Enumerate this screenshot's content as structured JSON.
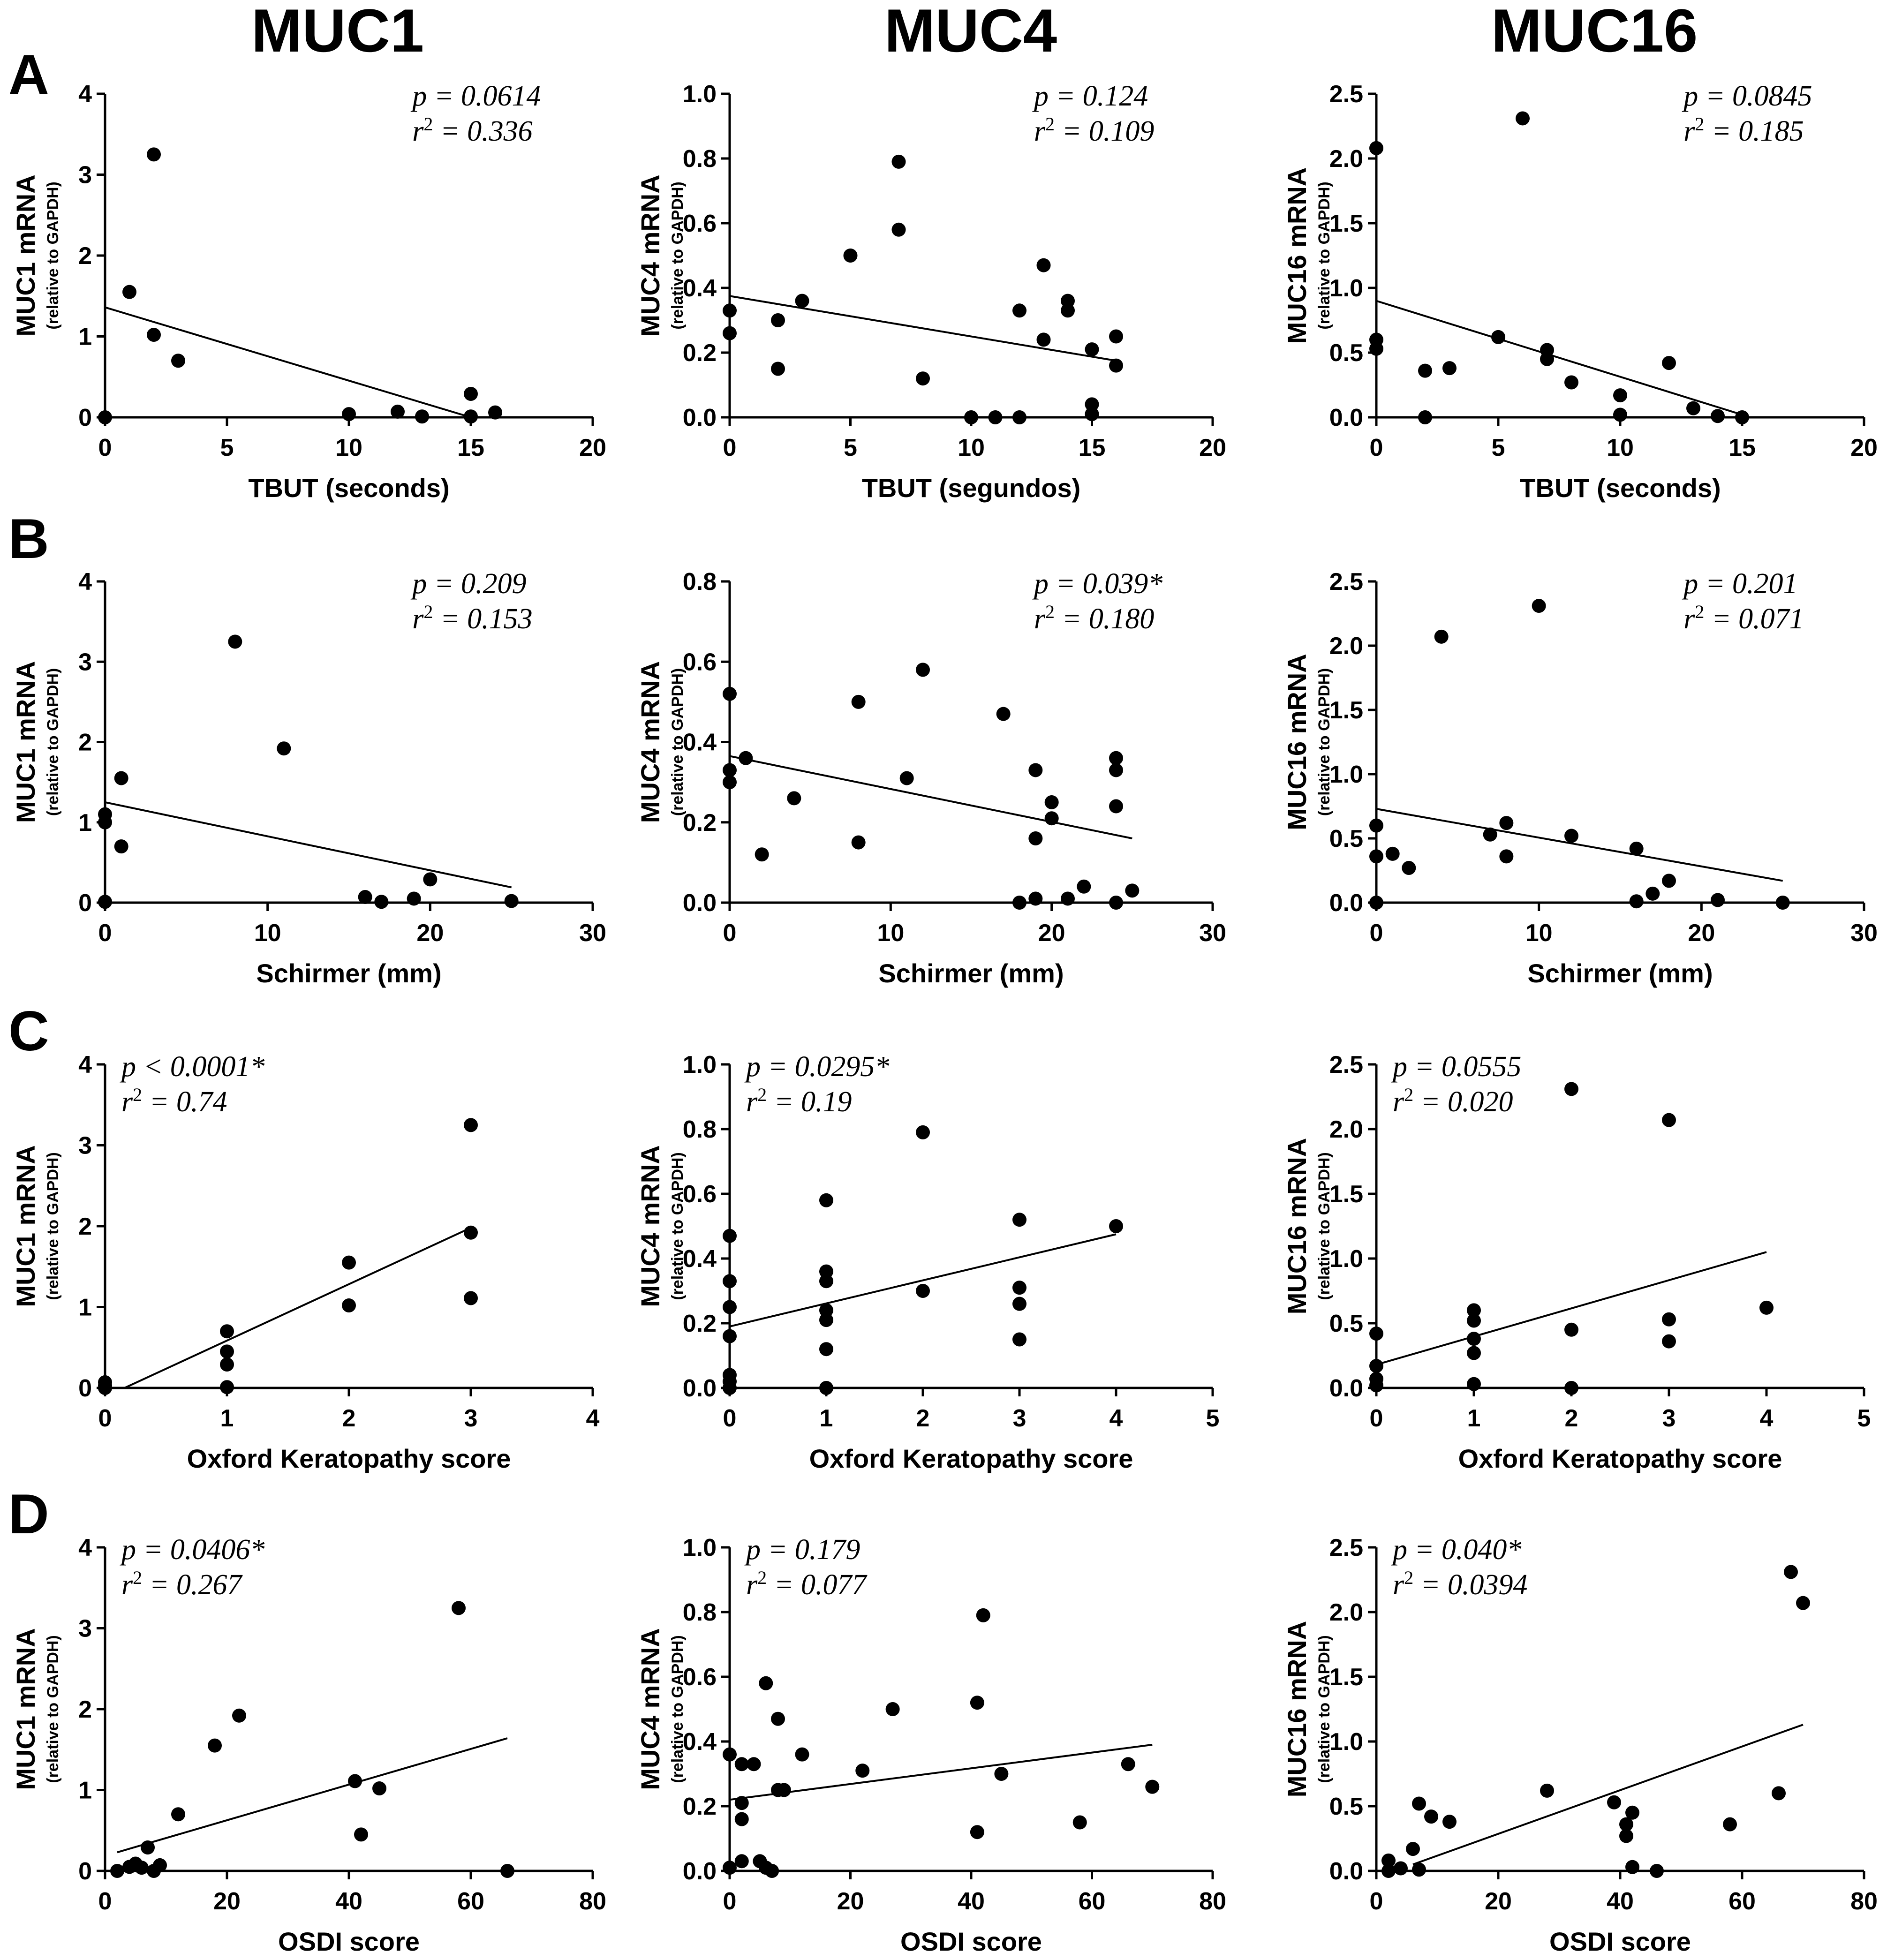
{
  "column_titles": [
    "MUC1",
    "MUC4",
    "MUC16"
  ],
  "row_letters": [
    "A",
    "B",
    "C",
    "D"
  ],
  "chart_data": [
    {
      "type": "scatter",
      "row": 0,
      "col": 0,
      "xlabel": "TBUT  (seconds)",
      "ylabel": "MUC1 mRNA",
      "ylabel_sub": "(relative to  GAPDH)",
      "xlim": [
        0,
        20
      ],
      "ylim": [
        0,
        4
      ],
      "xticks": [
        "0",
        "5",
        "10",
        "15",
        "20"
      ],
      "yticks": [
        "0",
        "1",
        "2",
        "3",
        "4"
      ],
      "stat_p": "p = 0.0614",
      "stat_r2": "r",
      "stat_r2_val": " = 0.336",
      "stat_pos": "top-right",
      "points": [
        [
          0,
          0
        ],
        [
          1,
          1.55
        ],
        [
          2,
          3.25
        ],
        [
          2,
          1.02
        ],
        [
          3,
          0.7
        ],
        [
          10,
          0.04
        ],
        [
          12,
          0.07
        ],
        [
          13,
          0.01
        ],
        [
          15,
          0.29
        ],
        [
          15,
          0.01
        ],
        [
          16,
          0.06
        ]
      ],
      "fit": [
        [
          0,
          1.36
        ],
        [
          15,
          0
        ]
      ]
    },
    {
      "type": "scatter",
      "row": 0,
      "col": 1,
      "xlabel": "TBUT (segundos)",
      "ylabel": "MUC4 mRNA",
      "ylabel_sub": "(relative to  GAPDH)",
      "xlim": [
        0,
        20
      ],
      "ylim": [
        0,
        1.0
      ],
      "xticks": [
        "0",
        "5",
        "10",
        "15",
        "20"
      ],
      "yticks": [
        "0.0",
        "0.2",
        "0.4",
        "0.6",
        "0.8",
        "1.0"
      ],
      "stat_p": "p = 0.124",
      "stat_r2": "r",
      "stat_r2_val": " = 0.109",
      "stat_pos": "top-right",
      "points": [
        [
          0,
          0.33
        ],
        [
          0,
          0.26
        ],
        [
          2,
          0.3
        ],
        [
          2,
          0.15
        ],
        [
          3,
          0.36
        ],
        [
          5,
          0.5
        ],
        [
          7,
          0.79
        ],
        [
          7,
          0.58
        ],
        [
          8,
          0.12
        ],
        [
          10,
          0.0
        ],
        [
          11,
          0.0
        ],
        [
          12,
          0.33
        ],
        [
          12,
          0.0
        ],
        [
          13,
          0.47
        ],
        [
          13,
          0.24
        ],
        [
          14,
          0.36
        ],
        [
          14,
          0.33
        ],
        [
          15,
          0.21
        ],
        [
          15,
          0.04
        ],
        [
          15,
          0.01
        ],
        [
          16,
          0.25
        ],
        [
          16,
          0.16
        ]
      ],
      "fit": [
        [
          0,
          0.375
        ],
        [
          16,
          0.175
        ]
      ]
    },
    {
      "type": "scatter",
      "row": 0,
      "col": 2,
      "xlabel": "TBUT  (seconds)",
      "ylabel": "MUC16 mRNA",
      "ylabel_sub": "(relative to  GAPDH)",
      "xlim": [
        0,
        20
      ],
      "ylim": [
        0,
        2.5
      ],
      "xticks": [
        "0",
        "5",
        "10",
        "15",
        "20"
      ],
      "yticks": [
        "0.0",
        "0.5",
        "1.0",
        "1.5",
        "2.0",
        "2.5"
      ],
      "stat_p": "p = 0.0845",
      "stat_r2": "r",
      "stat_r2_val": " = 0.185",
      "stat_pos": "top-right",
      "points": [
        [
          0,
          2.08
        ],
        [
          0,
          0.6
        ],
        [
          0,
          0.53
        ],
        [
          2,
          0.36
        ],
        [
          2,
          0.0
        ],
        [
          3,
          0.38
        ],
        [
          5,
          0.62
        ],
        [
          6,
          2.31
        ],
        [
          7,
          0.52
        ],
        [
          7,
          0.45
        ],
        [
          8,
          0.27
        ],
        [
          10,
          0.17
        ],
        [
          10,
          0.02
        ],
        [
          12,
          0.42
        ],
        [
          13,
          0.07
        ],
        [
          14,
          0.01
        ],
        [
          15,
          0.0
        ]
      ],
      "fit": [
        [
          0,
          0.9
        ],
        [
          15,
          0.02
        ]
      ]
    },
    {
      "type": "scatter",
      "row": 1,
      "col": 0,
      "xlabel": "Schirmer (mm)",
      "ylabel": "MUC1 mRNA",
      "ylabel_sub": "(relative to  GAPDH)",
      "xlim": [
        0,
        30
      ],
      "ylim": [
        0,
        4
      ],
      "xticks": [
        "0",
        "10",
        "20",
        "30"
      ],
      "yticks": [
        "0",
        "1",
        "2",
        "3",
        "4"
      ],
      "stat_p": "p = 0.209",
      "stat_r2": "r",
      "stat_r2_val": " = 0.153",
      "stat_pos": "top-right",
      "points": [
        [
          0,
          1.1
        ],
        [
          0,
          1.0
        ],
        [
          0,
          0.01
        ],
        [
          1,
          1.55
        ],
        [
          1,
          0.7
        ],
        [
          8,
          3.25
        ],
        [
          11,
          1.92
        ],
        [
          16,
          0.07
        ],
        [
          17,
          0.01
        ],
        [
          19,
          0.05
        ],
        [
          20,
          0.29
        ],
        [
          25,
          0.02
        ]
      ],
      "fit": [
        [
          0,
          1.25
        ],
        [
          25,
          0.19
        ]
      ]
    },
    {
      "type": "scatter",
      "row": 1,
      "col": 1,
      "xlabel": "Schirmer (mm)",
      "ylabel": "MUC4 mRNA",
      "ylabel_sub": "(relative to  GAPDH)",
      "xlim": [
        0,
        30
      ],
      "ylim": [
        0,
        0.8
      ],
      "xticks": [
        "0",
        "10",
        "20",
        "30"
      ],
      "yticks": [
        "0.0",
        "0.2",
        "0.4",
        "0.6",
        "0.8"
      ],
      "stat_p": "p = 0.039*",
      "stat_r2": "r",
      "stat_r2_val": " = 0.180",
      "stat_pos": "top-right",
      "points": [
        [
          0,
          0.52
        ],
        [
          0,
          0.33
        ],
        [
          0,
          0.3
        ],
        [
          1,
          0.36
        ],
        [
          2,
          0.12
        ],
        [
          4,
          0.26
        ],
        [
          8,
          0.5
        ],
        [
          8,
          0.15
        ],
        [
          11,
          0.31
        ],
        [
          12,
          0.58
        ],
        [
          17,
          0.47
        ],
        [
          18,
          0.0
        ],
        [
          19,
          0.33
        ],
        [
          19,
          0.16
        ],
        [
          19,
          0.01
        ],
        [
          20,
          0.25
        ],
        [
          20,
          0.21
        ],
        [
          21,
          0.01
        ],
        [
          22,
          0.04
        ],
        [
          24,
          0.36
        ],
        [
          24,
          0.33
        ],
        [
          24,
          0.24
        ],
        [
          24,
          0.0
        ],
        [
          25,
          0.03
        ]
      ],
      "fit": [
        [
          0,
          0.365
        ],
        [
          25,
          0.16
        ]
      ]
    },
    {
      "type": "scatter",
      "row": 1,
      "col": 2,
      "xlabel": "Schirmer (mm)",
      "ylabel": "MUC16 mRNA",
      "ylabel_sub": "(relative to  GAPDH)",
      "xlim": [
        0,
        30
      ],
      "ylim": [
        0,
        2.5
      ],
      "xticks": [
        "0",
        "10",
        "20",
        "30"
      ],
      "yticks": [
        "0.0",
        "0.5",
        "1.0",
        "1.5",
        "2.0",
        "2.5"
      ],
      "stat_p": "p = 0.201",
      "stat_r2": "r",
      "stat_r2_val": " = 0.071",
      "stat_pos": "top-right",
      "points": [
        [
          0,
          0.6
        ],
        [
          0,
          0.36
        ],
        [
          0,
          0.0
        ],
        [
          1,
          0.38
        ],
        [
          2,
          0.27
        ],
        [
          4,
          2.07
        ],
        [
          7,
          0.53
        ],
        [
          8,
          0.62
        ],
        [
          8,
          0.36
        ],
        [
          10,
          2.31
        ],
        [
          12,
          0.52
        ],
        [
          16,
          0.42
        ],
        [
          16,
          0.01
        ],
        [
          17,
          0.07
        ],
        [
          18,
          0.17
        ],
        [
          21,
          0.02
        ],
        [
          25,
          0.0
        ]
      ],
      "fit": [
        [
          0,
          0.73
        ],
        [
          25,
          0.17
        ]
      ]
    },
    {
      "type": "scatter",
      "row": 2,
      "col": 0,
      "xlabel": "Oxford  Keratopathy score",
      "ylabel": "MUC1 mRNA",
      "ylabel_sub": "(relative to  GAPDH)",
      "xlim": [
        0,
        4
      ],
      "ylim": [
        0,
        4
      ],
      "xticks": [
        "0",
        "1",
        "2",
        "3",
        "4"
      ],
      "yticks": [
        "0",
        "1",
        "2",
        "3",
        "4"
      ],
      "stat_p": "p < 0.0001*",
      "stat_r2": "r",
      "stat_r2_val": " = 0.74",
      "stat_pos": "top-left",
      "points": [
        [
          0,
          0.07
        ],
        [
          0,
          0.03
        ],
        [
          0,
          0.0
        ],
        [
          1,
          0.7
        ],
        [
          1,
          0.45
        ],
        [
          1,
          0.29
        ],
        [
          1,
          0.01
        ],
        [
          2,
          1.55
        ],
        [
          2,
          1.02
        ],
        [
          3,
          3.25
        ],
        [
          3,
          1.92
        ],
        [
          3,
          1.11
        ]
      ],
      "fit": [
        [
          0.16,
          0
        ],
        [
          3,
          1.98
        ]
      ]
    },
    {
      "type": "scatter",
      "row": 2,
      "col": 1,
      "xlabel": "Oxford Keratopathy score",
      "ylabel": "MUC4 mRNA",
      "ylabel_sub": "(relative to  GAPDH)",
      "xlim": [
        0,
        5
      ],
      "ylim": [
        0,
        1.0
      ],
      "xticks": [
        "0",
        "1",
        "2",
        "3",
        "4",
        "5"
      ],
      "yticks": [
        "0.0",
        "0.2",
        "0.4",
        "0.6",
        "0.8",
        "1.0"
      ],
      "stat_p": "p = 0.0295*",
      "stat_r2": "r",
      "stat_r2_val": " = 0.19",
      "stat_pos": "top-left",
      "points": [
        [
          0,
          0.47
        ],
        [
          0,
          0.33
        ],
        [
          0,
          0.25
        ],
        [
          0,
          0.16
        ],
        [
          0,
          0.04
        ],
        [
          0,
          0.02
        ],
        [
          0,
          0.0
        ],
        [
          1,
          0.58
        ],
        [
          1,
          0.36
        ],
        [
          1,
          0.33
        ],
        [
          1,
          0.24
        ],
        [
          1,
          0.21
        ],
        [
          1,
          0.12
        ],
        [
          1,
          0.0
        ],
        [
          2,
          0.79
        ],
        [
          2,
          0.3
        ],
        [
          3,
          0.52
        ],
        [
          3,
          0.31
        ],
        [
          3,
          0.26
        ],
        [
          3,
          0.15
        ],
        [
          4,
          0.5
        ]
      ],
      "fit": [
        [
          0,
          0.19
        ],
        [
          4,
          0.475
        ]
      ]
    },
    {
      "type": "scatter",
      "row": 2,
      "col": 2,
      "xlabel": "Oxford  Keratopathy score",
      "ylabel": "MUC16 mRNA",
      "ylabel_sub": "(relative to  GAPDH)",
      "xlim": [
        0,
        5
      ],
      "ylim": [
        0,
        2.5
      ],
      "xticks": [
        "0",
        "1",
        "2",
        "3",
        "4",
        "5"
      ],
      "yticks": [
        "0.0",
        "0.5",
        "1.0",
        "1.5",
        "2.0",
        "2.5"
      ],
      "stat_p": "p = 0.0555",
      "stat_r2": "r",
      "stat_r2_val": " = 0.020",
      "stat_pos": "top-left",
      "points": [
        [
          0,
          0.42
        ],
        [
          0,
          0.17
        ],
        [
          0,
          0.07
        ],
        [
          0,
          0.02
        ],
        [
          1,
          0.6
        ],
        [
          1,
          0.52
        ],
        [
          1,
          0.38
        ],
        [
          1,
          0.27
        ],
        [
          1,
          0.03
        ],
        [
          2,
          2.31
        ],
        [
          2,
          0.45
        ],
        [
          2,
          0.0
        ],
        [
          3,
          2.07
        ],
        [
          3,
          0.53
        ],
        [
          3,
          0.36
        ],
        [
          4,
          0.62
        ]
      ],
      "fit": [
        [
          0,
          0.18
        ],
        [
          4,
          1.05
        ]
      ]
    },
    {
      "type": "scatter",
      "row": 3,
      "col": 0,
      "xlabel": "OSDI score",
      "ylabel": "MUC1 mRNA",
      "ylabel_sub": "(relative to  GAPDH)",
      "xlim": [
        0,
        80
      ],
      "ylim": [
        0,
        4
      ],
      "xticks": [
        "0",
        "20",
        "40",
        "60",
        "80"
      ],
      "yticks": [
        "0",
        "1",
        "2",
        "3",
        "4"
      ],
      "stat_p": "p = 0.0406*",
      "stat_r2": "r",
      "stat_r2_val": " = 0.267",
      "stat_pos": "top-left",
      "points": [
        [
          2,
          0.0
        ],
        [
          4,
          0.05
        ],
        [
          5,
          0.09
        ],
        [
          6,
          0.04
        ],
        [
          7,
          0.29
        ],
        [
          8,
          0.0
        ],
        [
          9,
          0.07
        ],
        [
          12,
          0.7
        ],
        [
          18,
          1.55
        ],
        [
          22,
          1.92
        ],
        [
          41,
          1.11
        ],
        [
          42,
          0.45
        ],
        [
          45,
          1.02
        ],
        [
          58,
          3.25
        ],
        [
          66,
          0.0
        ]
      ],
      "fit": [
        [
          2,
          0.23
        ],
        [
          66,
          1.64
        ]
      ]
    },
    {
      "type": "scatter",
      "row": 3,
      "col": 1,
      "xlabel": "OSDI score",
      "ylabel": "MUC4 mRNA",
      "ylabel_sub": "(relative to  GAPDH)",
      "xlim": [
        0,
        80
      ],
      "ylim": [
        0,
        1.0
      ],
      "xticks": [
        "0",
        "20",
        "40",
        "60",
        "80"
      ],
      "yticks": [
        "0.0",
        "0.2",
        "0.4",
        "0.6",
        "0.8",
        "1.0"
      ],
      "stat_p": "p = 0.179",
      "stat_r2": "r",
      "stat_r2_val": " = 0.077",
      "stat_pos": "top-left",
      "points": [
        [
          0,
          0.36
        ],
        [
          0,
          0.01
        ],
        [
          2,
          0.33
        ],
        [
          2,
          0.21
        ],
        [
          2,
          0.16
        ],
        [
          2,
          0.03
        ],
        [
          4,
          0.33
        ],
        [
          5,
          0.03
        ],
        [
          6,
          0.58
        ],
        [
          6,
          0.01
        ],
        [
          7,
          0.0
        ],
        [
          8,
          0.47
        ],
        [
          8,
          0.25
        ],
        [
          9,
          0.25
        ],
        [
          12,
          0.36
        ],
        [
          22,
          0.31
        ],
        [
          27,
          0.5
        ],
        [
          41,
          0.52
        ],
        [
          41,
          0.12
        ],
        [
          42,
          0.79
        ],
        [
          45,
          0.3
        ],
        [
          58,
          0.15
        ],
        [
          66,
          0.33
        ],
        [
          70,
          0.26
        ]
      ],
      "fit": [
        [
          0,
          0.22
        ],
        [
          70,
          0.39
        ]
      ]
    },
    {
      "type": "scatter",
      "row": 3,
      "col": 2,
      "xlabel": "OSDI score",
      "ylabel": "MUC16 mRNA",
      "ylabel_sub": "(relative to  GAPDH)",
      "xlim": [
        0,
        80
      ],
      "ylim": [
        0,
        2.5
      ],
      "xticks": [
        "0",
        "20",
        "40",
        "60",
        "80"
      ],
      "yticks": [
        "0.0",
        "0.5",
        "1.0",
        "1.5",
        "2.0",
        "2.5"
      ],
      "stat_p": "p = 0.040*",
      "stat_r2": "r",
      "stat_r2_val": " = 0.0394",
      "stat_pos": "top-left",
      "points": [
        [
          2,
          0.08
        ],
        [
          2,
          0.0
        ],
        [
          4,
          0.02
        ],
        [
          6,
          0.17
        ],
        [
          7,
          0.52
        ],
        [
          7,
          0.01
        ],
        [
          9,
          0.42
        ],
        [
          12,
          0.38
        ],
        [
          28,
          0.62
        ],
        [
          39,
          0.53
        ],
        [
          41,
          0.36
        ],
        [
          41,
          0.27
        ],
        [
          42,
          0.45
        ],
        [
          42,
          0.03
        ],
        [
          46,
          0.0
        ],
        [
          58,
          0.36
        ],
        [
          66,
          0.6
        ],
        [
          68,
          2.31
        ],
        [
          70,
          2.07
        ]
      ],
      "fit": [
        [
          6,
          0.05
        ],
        [
          70,
          1.13
        ]
      ]
    }
  ]
}
